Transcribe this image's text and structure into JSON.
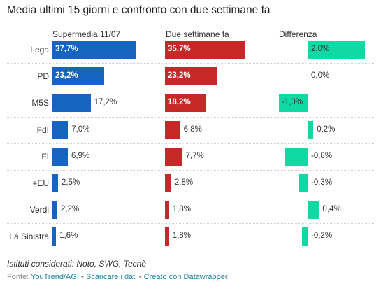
{
  "title": "Media ultimi 15 giorni e confronto con due settimane fa",
  "colors": {
    "current": "#1565c0",
    "previous": "#c62828",
    "difference": "#10d9a3"
  },
  "footnote": "Istituti considerati: Noto, SWG, Tecnè",
  "source": {
    "prefix": "Fonte: ",
    "source_link": "YouTrend/AGI",
    "download_link": "Scaricare i dati",
    "tool_link": "Creato con Datawrapper",
    "separator": " • "
  },
  "chart_data": {
    "type": "bar",
    "columns": [
      "Supermedia 11/07",
      "Due settimane fa",
      "Differenza"
    ],
    "categories": [
      "Lega",
      "PD",
      "M5S",
      "FdI",
      "FI",
      "+EU",
      "Verdi",
      "La Sinistra"
    ],
    "series": [
      {
        "name": "Supermedia 11/07",
        "values": [
          37.7,
          23.2,
          17.2,
          7.0,
          6.9,
          2.5,
          2.2,
          1.6
        ],
        "labels": [
          "37,7%",
          "23,2%",
          "17,2%",
          "7,0%",
          "6,9%",
          "2,5%",
          "2,2%",
          "1,6%"
        ]
      },
      {
        "name": "Due settimane fa",
        "values": [
          35.7,
          23.2,
          18.2,
          6.8,
          7.7,
          2.8,
          1.8,
          1.8
        ],
        "labels": [
          "35,7%",
          "23,2%",
          "18,2%",
          "6,8%",
          "7,7%",
          "2,8%",
          "1,8%",
          "1,8%"
        ]
      },
      {
        "name": "Differenza",
        "values": [
          2.0,
          0.0,
          -1.0,
          0.2,
          -0.8,
          -0.3,
          0.4,
          -0.2
        ],
        "labels": [
          "2,0%",
          "0,0%",
          "-1,0%",
          "0,2%",
          "-0,8%",
          "-0,3%",
          "0,4%",
          "-0,2%"
        ]
      }
    ],
    "grid": false,
    "legend": "none"
  }
}
